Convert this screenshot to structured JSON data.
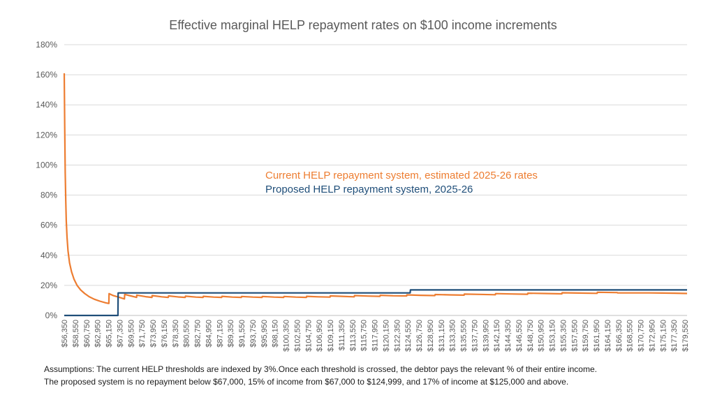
{
  "chart_data": {
    "type": "line",
    "title": "Effective marginal HELP repayment rates on $100 income increments",
    "xlabel": "",
    "ylabel": "",
    "ylim": [
      0,
      1.8
    ],
    "y_ticks": [
      "0%",
      "20%",
      "40%",
      "60%",
      "80%",
      "100%",
      "120%",
      "140%",
      "160%",
      "180%"
    ],
    "x_range": [
      56350,
      179950
    ],
    "x_tick_labels": [
      "$56,350",
      "$58,550",
      "$60,750",
      "$62,950",
      "$65,150",
      "$67,350",
      "$69,550",
      "$71,750",
      "$73,950",
      "$76,150",
      "$78,350",
      "$80,550",
      "$82,750",
      "$84,950",
      "$87,150",
      "$89,350",
      "$91,550",
      "$93,750",
      "$95,950",
      "$98,150",
      "$100,350",
      "$102,550",
      "$104,750",
      "$106,950",
      "$109,150",
      "$111,350",
      "$113,550",
      "$115,750",
      "$117,950",
      "$120,150",
      "$122,350",
      "$124,550",
      "$126,750",
      "$128,950",
      "$131,150",
      "$133,350",
      "$135,550",
      "$137,750",
      "$139,950",
      "$142,150",
      "$144,350",
      "$146,550",
      "$148,750",
      "$150,950",
      "$153,150",
      "$155,350",
      "$157,550",
      "$159,750",
      "$161,950",
      "$164,150",
      "$166,350",
      "$168,550",
      "$170,750",
      "$172,950",
      "$175,150",
      "$177,350",
      "$179,550"
    ],
    "grid": true,
    "legend": "center-inline",
    "series": [
      {
        "name": "Current HELP repayment system, estimated 2025-26 rates",
        "color": "#ED7D31",
        "points": [
          [
            56350,
            1.61
          ],
          [
            56450,
            1.25
          ],
          [
            56550,
            0.95
          ],
          [
            56650,
            0.76
          ],
          [
            56750,
            0.63
          ],
          [
            56900,
            0.52
          ],
          [
            57100,
            0.43
          ],
          [
            57400,
            0.35
          ],
          [
            57800,
            0.29
          ],
          [
            58300,
            0.24
          ],
          [
            58900,
            0.2
          ],
          [
            59600,
            0.17
          ],
          [
            60400,
            0.146
          ],
          [
            61300,
            0.125
          ],
          [
            62300,
            0.108
          ],
          [
            63400,
            0.095
          ],
          [
            64600,
            0.084
          ],
          [
            65200,
            0.08
          ],
          [
            65250,
            0.145
          ],
          [
            66000,
            0.133
          ],
          [
            67300,
            0.12
          ],
          [
            68300,
            0.11
          ],
          [
            68350,
            0.14
          ],
          [
            69550,
            0.13
          ],
          [
            70700,
            0.12
          ],
          [
            70750,
            0.135
          ],
          [
            72500,
            0.125
          ],
          [
            73750,
            0.12
          ],
          [
            73800,
            0.132
          ],
          [
            75700,
            0.124
          ],
          [
            77000,
            0.12
          ],
          [
            77050,
            0.13
          ],
          [
            79000,
            0.123
          ],
          [
            80350,
            0.12
          ],
          [
            80400,
            0.128
          ],
          [
            82500,
            0.122
          ],
          [
            83900,
            0.12
          ],
          [
            83950,
            0.127
          ],
          [
            86000,
            0.122
          ],
          [
            87600,
            0.12
          ],
          [
            87650,
            0.127
          ],
          [
            89700,
            0.122
          ],
          [
            91500,
            0.12
          ],
          [
            91550,
            0.126
          ],
          [
            93800,
            0.122
          ],
          [
            95600,
            0.12
          ],
          [
            95650,
            0.126
          ],
          [
            98000,
            0.122
          ],
          [
            99900,
            0.12
          ],
          [
            99950,
            0.126
          ],
          [
            102300,
            0.122
          ],
          [
            104400,
            0.12
          ],
          [
            104450,
            0.127
          ],
          [
            106800,
            0.124
          ],
          [
            109100,
            0.122
          ],
          [
            109150,
            0.13
          ],
          [
            111500,
            0.127
          ],
          [
            113900,
            0.124
          ],
          [
            113950,
            0.132
          ],
          [
            116500,
            0.129
          ],
          [
            119000,
            0.127
          ],
          [
            119050,
            0.134
          ],
          [
            121600,
            0.131
          ],
          [
            124300,
            0.13
          ],
          [
            124350,
            0.137
          ],
          [
            127000,
            0.134
          ],
          [
            129900,
            0.132
          ],
          [
            129950,
            0.139
          ],
          [
            132800,
            0.137
          ],
          [
            135700,
            0.135
          ],
          [
            135750,
            0.142
          ],
          [
            138800,
            0.14
          ],
          [
            141900,
            0.138
          ],
          [
            141950,
            0.145
          ],
          [
            145000,
            0.143
          ],
          [
            148300,
            0.141
          ],
          [
            148350,
            0.148
          ],
          [
            151600,
            0.146
          ],
          [
            155100,
            0.144
          ],
          [
            155150,
            0.151
          ],
          [
            158500,
            0.149
          ],
          [
            162100,
            0.147
          ],
          [
            162150,
            0.154
          ],
          [
            165700,
            0.152
          ],
          [
            166100,
            0.152
          ],
          [
            166150,
            0.15
          ],
          [
            169000,
            0.15
          ],
          [
            172500,
            0.15
          ],
          [
            175000,
            0.149
          ],
          [
            177500,
            0.148
          ],
          [
            179950,
            0.146
          ]
        ]
      },
      {
        "name": "Proposed HELP repayment system, 2025-26",
        "color": "#1F4E79",
        "points": [
          [
            56350,
            0
          ],
          [
            67000,
            0
          ],
          [
            67050,
            0.15
          ],
          [
            125000,
            0.15
          ],
          [
            125050,
            0.17
          ],
          [
            179950,
            0.17
          ]
        ]
      }
    ]
  },
  "notes": {
    "line1": "Assumptions: The current HELP thresholds are indexed by 3%.Once each threshold is crossed, the debtor pays the relevant % of their entire income.",
    "line2": "The proposed system is no repayment below $67,000, 15% of income from $67,000 to $124,999, and 17% of income at $125,000 and above."
  }
}
